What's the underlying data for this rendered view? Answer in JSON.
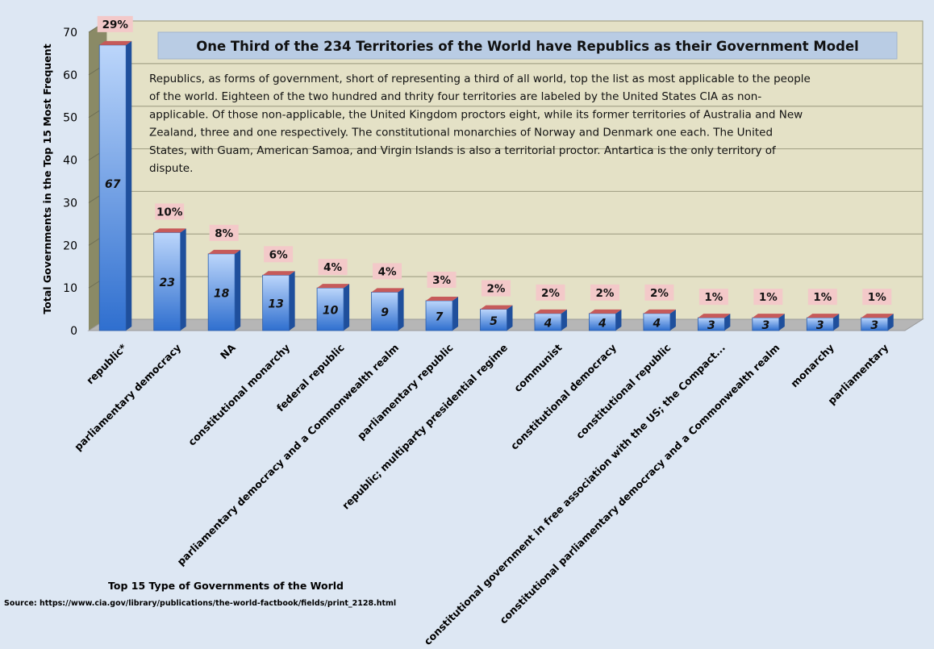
{
  "chart_data": {
    "type": "bar",
    "title": "One Third of the 234 Territories of the World have Republics as their Government Model",
    "description": "Republics, as forms of government, short of representing a third of all world, top the list as most applicable to the people of the world.  Eighteen of the two hundred and thrity four territories are labeled by the United States CIA as non-applicable.  Of those non-applicable, the United Kingdom proctors eight, while its former territories of Australia and New Zealand, three and one respectively.  The constitutional monarchies of Norway and Denmark one each. The United States, with Guam, American Samoa, and Virgin Islands is also a territorial proctor. Antartica is the only territory of dispute.",
    "description_lines": [
      "Republics, as forms of government, short of representing a third of all world, top the list as most applicable to the people",
      "of the world.  Eighteen of the two hundred and thrity four territories are labeled by the United States CIA as non-",
      "applicable.  Of those non-applicable, the United Kingdom proctors eight, while its former territories of Australia and New",
      "Zealand, three and one respectively.  The constitutional monarchies of Norway and Denmark one each. The United",
      "States, with Guam, American Samoa, and Virgin Islands is also a territorial proctor. Antartica is the only territory of",
      "dispute."
    ],
    "ylabel": "Total Governments in  the Top 15 Most Frequent",
    "xlabel": "",
    "ylim": [
      0,
      70
    ],
    "yticks": [
      "0",
      "10",
      "20",
      "30",
      "40",
      "50",
      "60",
      "70"
    ],
    "grid": true,
    "categories": [
      "republic*",
      "parliamentary democracy",
      "NA",
      "constitutional monarchy",
      "federal republic",
      "parliamentary democracy and a Commonwealth realm",
      "parliamentary republic",
      "republic; multiparty presidential regime",
      "communist",
      "constitutional democracy",
      "constitutional republic",
      "constitutional government in free association with the US; the Compact...",
      "constitutional parliamentary democracy and a Commonwealth realm",
      "monarchy",
      "parliamentary"
    ],
    "values": [
      67,
      23,
      18,
      13,
      10,
      9,
      7,
      5,
      4,
      4,
      4,
      3,
      3,
      3,
      3
    ],
    "value_labels": [
      "67",
      "23",
      "18",
      "13",
      "10",
      "9",
      "7",
      "5",
      "4",
      "4",
      "4",
      "3",
      "3",
      "3",
      "3"
    ],
    "percent_labels": [
      "29%",
      "10%",
      "8%",
      "6%",
      "4%",
      "4%",
      "3%",
      "2%",
      "2%",
      "2%",
      "2%",
      "1%",
      "1%",
      "1%",
      "1%"
    ],
    "footer_title": "Top 15 Type of Governments of the World",
    "source": "Source: https://www.cia.gov/library/publications/the-world-factbook/fields/print_2128.html",
    "colors": {
      "bar_top": "#bcd6fb",
      "bar_bottom": "#2f6fcf",
      "bar_side": "#1f4f9c",
      "bar_cap": "#c65a5a",
      "pct_box": "#f3c9c9",
      "wall": "#e4e1c6",
      "side_wall": "#8a8a66",
      "floor": "#b6b6b6",
      "title_box": "#b9cce4",
      "background": "#dde7f3"
    }
  }
}
